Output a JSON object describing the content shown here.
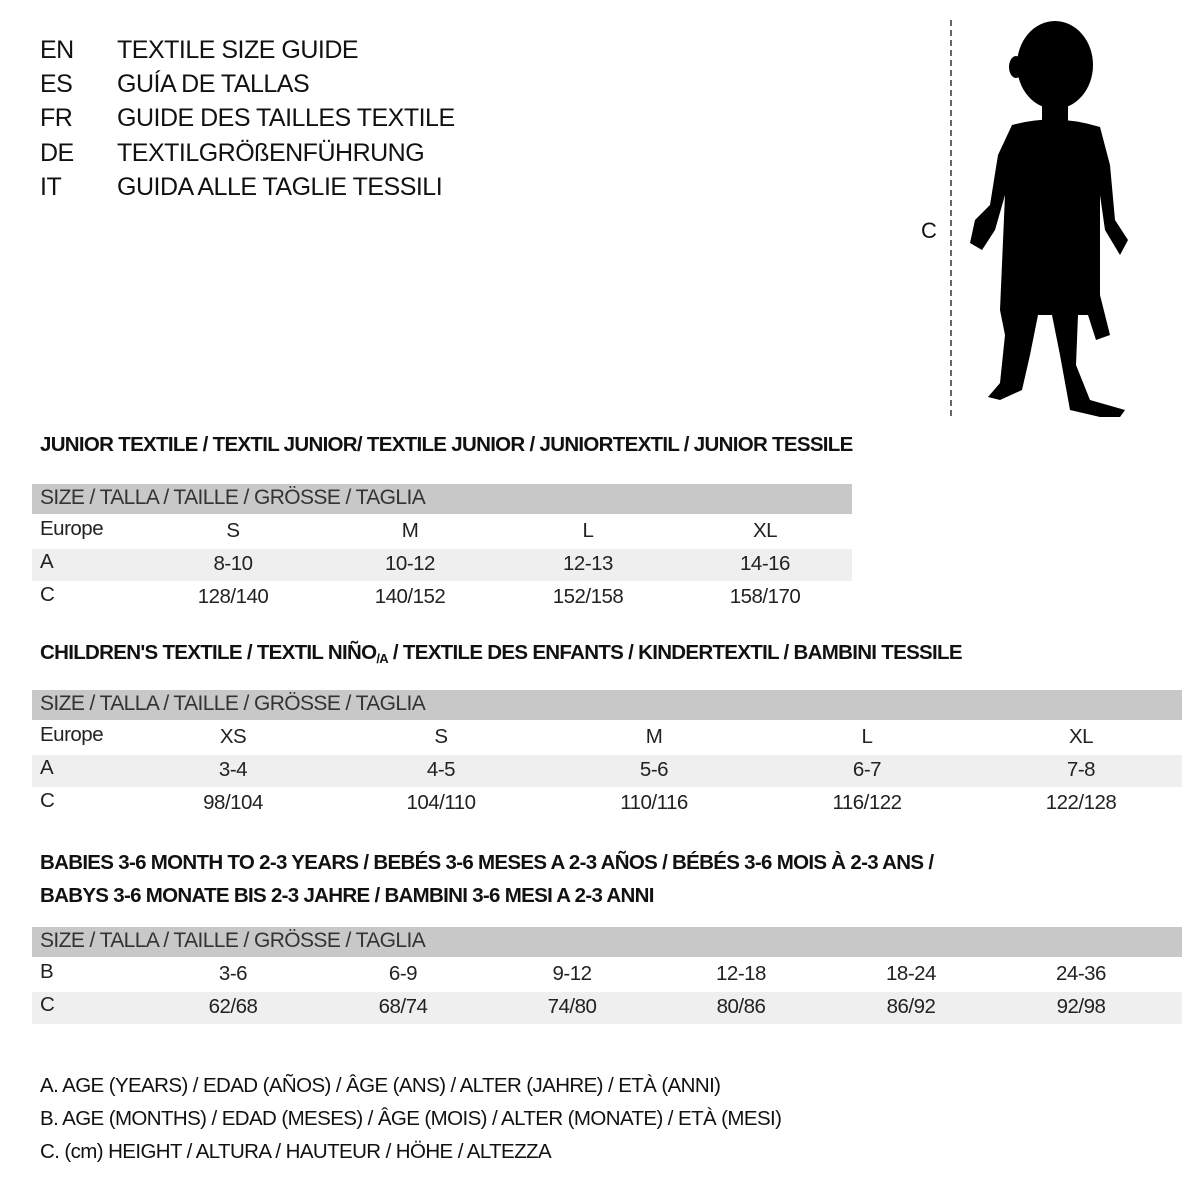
{
  "titles": [
    {
      "lang": "EN",
      "text": "TEXTILE SIZE GUIDE"
    },
    {
      "lang": "ES",
      "text": "GUÍA DE TALLAS"
    },
    {
      "lang": "FR",
      "text": "GUIDE DES TAILLES TEXTILE"
    },
    {
      "lang": "DE",
      "text": "TEXTILGRÖßENFÜHRUNG"
    },
    {
      "lang": "IT",
      "text": "GUIDA ALLE TAGLIE TESSILI"
    }
  ],
  "figure": {
    "height_label": "C",
    "icon": "child-silhouette-icon"
  },
  "colors": {
    "header_bg": "#c8c8c8",
    "row_shade": "#efefef"
  },
  "junior": {
    "title": "JUNIOR TEXTILE / TEXTIL JUNIOR/ TEXTILE JUNIOR / JUNIORTEXTIL / JUNIOR TESSILE",
    "header": "SIZE / TALLA / TAILLE / GRÖSSE / TAGLIA",
    "rows": [
      {
        "label": "Europe",
        "values": [
          "S",
          "M",
          "L",
          "XL"
        ]
      },
      {
        "label": "A",
        "values": [
          "8-10",
          "10-12",
          "12-13",
          "14-16"
        ]
      },
      {
        "label": "C",
        "values": [
          "128/140",
          "140/152",
          "152/158",
          "158/170"
        ]
      }
    ]
  },
  "children": {
    "title_pre": "CHILDREN'S TEXTILE / TEXTIL NIÑO",
    "title_sub": "/A",
    "title_post": " / TEXTILE DES ENFANTS / KINDERTEXTIL / BAMBINI TESSILE",
    "header": "SIZE / TALLA / TAILLE / GRÖSSE / TAGLIA",
    "rows": [
      {
        "label": "Europe",
        "values": [
          "XS",
          "S",
          "M",
          "L",
          "XL"
        ]
      },
      {
        "label": "A",
        "values": [
          "3-4",
          "4-5",
          "5-6",
          "6-7",
          "7-8"
        ]
      },
      {
        "label": "C",
        "values": [
          "98/104",
          "104/110",
          "110/116",
          "116/122",
          "122/128"
        ]
      }
    ]
  },
  "babies": {
    "title_line1": "BABIES 3-6 MONTH TO 2-3 YEARS / BEBÉS 3-6 MESES A 2-3 AÑOS / BÉBÉS 3-6 MOIS À 2-3 ANS /",
    "title_line2": "BABYS 3-6 MONATE BIS 2-3 JAHRE / BAMBINI 3-6 MESI A 2-3 ANNI",
    "header": "SIZE / TALLA / TAILLE / GRÖSSE / TAGLIA",
    "rows": [
      {
        "label": "B",
        "values": [
          "3-6",
          "6-9",
          "9-12",
          "12-18",
          "18-24",
          "24-36"
        ]
      },
      {
        "label": "C",
        "values": [
          "62/68",
          "68/74",
          "74/80",
          "80/86",
          "86/92",
          "92/98"
        ]
      }
    ]
  },
  "legend": [
    "A. AGE (YEARS) / EDAD (AÑOS) / ÂGE (ANS) / ALTER (JAHRE) / ETÀ (ANNI)",
    "B. AGE (MONTHS) / EDAD (MESES) / ÂGE (MOIS) / ALTER (MONATE) / ETÀ (MESI)",
    "C. (cm) HEIGHT / ALTURA / HAUTEUR / HÖHE / ALTEZZA"
  ]
}
